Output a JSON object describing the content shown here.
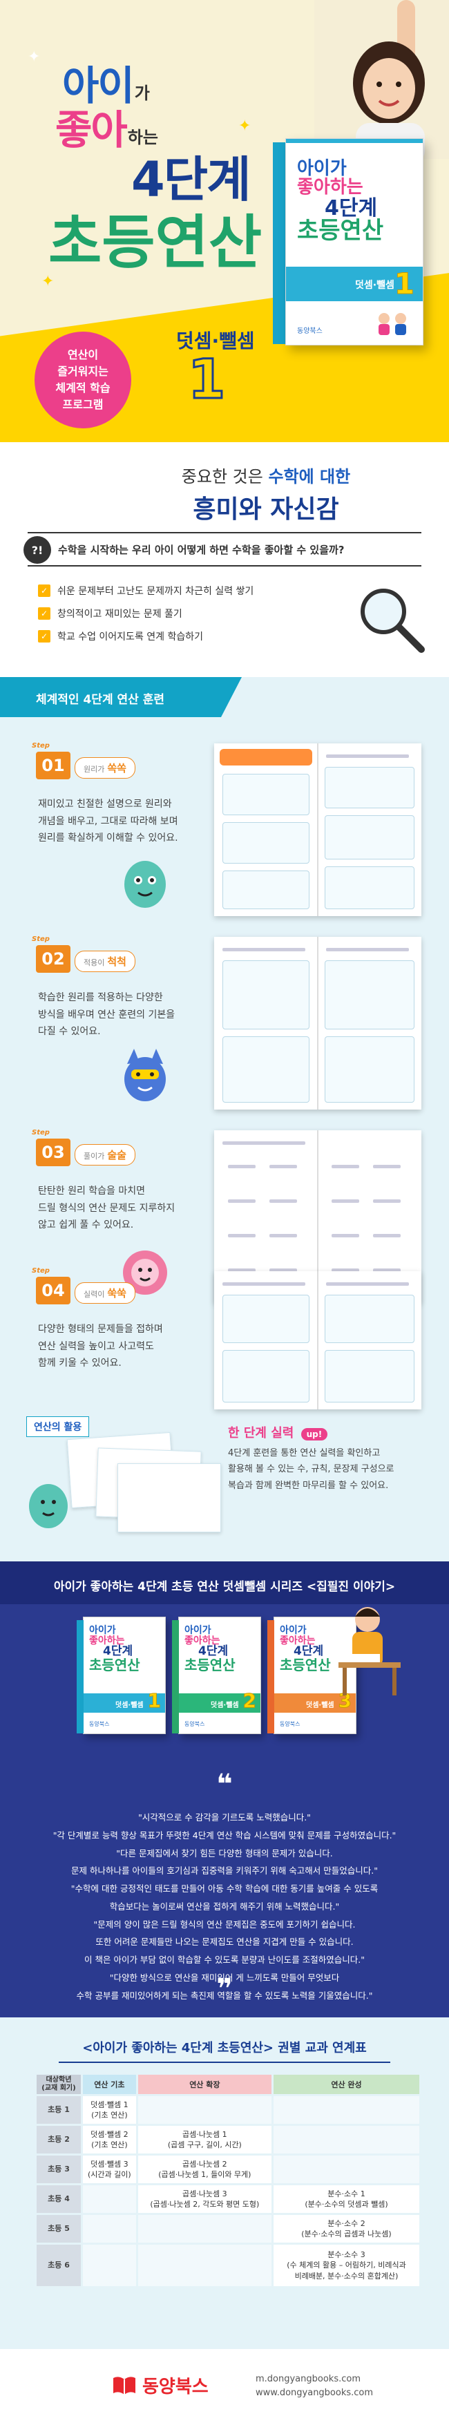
{
  "hero": {
    "title_l1_big1": "아이",
    "title_l1_small": "가",
    "title_l2_big1": "좋아",
    "title_l2_small": "하는",
    "title_l3": "4단계",
    "title_l4": "초등연산",
    "subtitle": "덧셈·뺄셈",
    "volume": "1",
    "badge": "연산이\n즐거워지는\n체계적 학습\n프로그램"
  },
  "book_cover": {
    "line1": "아이가",
    "line2": "좋아하는",
    "line3": "4단계",
    "line4": "초등연산",
    "bar_label": "덧셈·뺄셈",
    "number": "1",
    "publisher": "동양북스"
  },
  "intro": {
    "line1_pre": "중요한 것은 ",
    "line1_hl": "수학에 대한",
    "line2": "흥미와 자신감",
    "question_icon": "?!",
    "question": "수학을 시작하는 우리 아이 어떻게 하면 수학을 좋아할 수 있을까?",
    "points": [
      "쉬운 문제부터 고난도 문제까지 차근히 실력 쌓기",
      "창의적이고 재미있는 문제 풀기",
      "학교 수업 이어지도록 연계 학습하기"
    ]
  },
  "steps_section": {
    "header": "체계적인 4단계 연산 훈련",
    "step_word": "Step",
    "steps": [
      {
        "num": "01",
        "label_small": "원리가",
        "label": "쏙쏙",
        "desc": "재미있고 친절한 설명으로 원리와\n개념을 배우고, 그대로 따라해 보며\n원리를 확실하게 이해할 수 있어요."
      },
      {
        "num": "02",
        "label_small": "적용이",
        "label": "척척",
        "desc": "학습한 원리를 적용하는 다양한\n방식을 배우며 연산 훈련의 기본을\n다질 수 있어요."
      },
      {
        "num": "03",
        "label_small": "풀이가",
        "label": "술술",
        "desc": "탄탄한 원리 학습을 마치면\n드릴 형식의 연산 문제도 지루하지\n않고 쉽게 풀 수 있어요."
      },
      {
        "num": "04",
        "label_small": "실력이",
        "label": "쑥쑥",
        "desc": "다양한 형태의 문제들을 접하며\n연산 실력을 높이고 사고력도\n함께 키울 수 있어요."
      }
    ],
    "practice_header": "연산의 활용",
    "practice_title": "한 단계 실력",
    "practice_badge": "up!",
    "practice_desc": "4단계 훈련을 통한 연산 실력을 확인하고\n활용해 볼 수 있는 수, 규칙, 문장제 구성으로\n복습과 함께 완벽한 마무리를 할 수 있어요."
  },
  "series": {
    "header": "아이가 좋아하는 4단계 초등 연산 덧셈뺄셈 시리즈 <집필진 이야기>",
    "books": [
      {
        "line1": "아이가",
        "line2": "좋아하는",
        "line3": "4단계",
        "line4": "초등연산",
        "bar": "덧셈·뺄셈",
        "num": "1",
        "pub": "동양북스"
      },
      {
        "line1": "아이가",
        "line2": "좋아하는",
        "line3": "4단계",
        "line4": "초등연산",
        "bar": "덧셈·뺄셈",
        "num": "2",
        "pub": "동양북스"
      },
      {
        "line1": "아이가",
        "line2": "좋아하는",
        "line3": "4단계",
        "line4": "초등연산",
        "bar": "덧셈·뺄셈",
        "num": "3",
        "pub": "동양북스"
      }
    ],
    "quote_open": "❝",
    "quote_close": "❞",
    "quote_lines": [
      "\"시각적으로 수 감각을 기르도록 노력했습니다.\"",
      "\"각 단계별로 능력 향상 목표가 뚜렷한 4단계 연산 학습 시스템에 맞춰 문제를 구성하였습니다.\"",
      "\"다른 문제집에서 찾기 힘든 다양한 형태의 문제가 있습니다.",
      "문제 하나하나를 아이들의 호기심과 집중력을 키워주기 위해 숙고해서 만들었습니다.\"",
      "\"수학에 대한 긍정적인 태도를 만들어 아동 수학 학습에 대한 동기를 높여줄 수 있도록",
      "학습보다는 놀이로써 연산을 접하게 해주기 위해 노력했습니다.\"",
      "\"문제의 양이 많은 드릴 형식의 연산 문제집은 중도에 포기하기 쉽습니다.",
      "또한 어려운 문제들만 나오는 문제집도 연산을 지겹게 만들 수 있습니다.",
      "이 책은 아이가 부담 없이 학습할 수 있도록 분량과 난이도를 조절하였습니다.\"",
      "\"다양한 방식으로 연산을 재미있어 게 느끼도록 만들어 무엇보다",
      "수학 공부를 재미있어하게 되는 촉진제 역할을 할 수 있도록 노력을 기울였습니다.\""
    ]
  },
  "curriculum": {
    "title": "<아이가 좋아하는 4단계 초등연산> 권별 교과 연계표",
    "headers": [
      "대상학년\n(교재 회기)",
      "연산 기초",
      "연산 확장",
      "연산 완성"
    ],
    "rows": [
      {
        "grade": "초등 1",
        "a": "덧셈·뺄셈 1\n(기초 연산)",
        "b": "",
        "c": ""
      },
      {
        "grade": "초등 2",
        "a": "덧셈·뺄셈 2\n(기초 연산)",
        "b": "곱셈·나눗셈 1\n(곱셈 구구, 길이, 시간)",
        "c": ""
      },
      {
        "grade": "초등 3",
        "a": "덧셈·뺄셈 3\n(시간과 길이)",
        "b": "곱셈·나눗셈 2\n(곱셈·나눗셈 1, 들이와 무게)",
        "c": ""
      },
      {
        "grade": "초등 4",
        "a": "",
        "b": "곱셈·나눗셈 3\n(곱셈·나눗셈 2, 각도와 평면 도형)",
        "c": "분수·소수 1\n(분수·소수의 덧셈과 뺄셈)"
      },
      {
        "grade": "초등 5",
        "a": "",
        "b": "",
        "c": "분수·소수 2\n(분수·소수의 곱셈과 나눗셈)"
      },
      {
        "grade": "초등 6",
        "a": "",
        "b": "",
        "c": "분수·소수 3\n(수 체계의 활용 – 어림하기, 비례식과\n비례배분, 분수·소수의 혼합계산)"
      }
    ]
  },
  "footer": {
    "logo": "동양북스",
    "site": "m.dongyangbooks.com\nwww.dongyangbooks.com"
  },
  "colors": {
    "yellow": "#ffd400",
    "pink": "#ec3f8a",
    "navy": "#183d91",
    "teal": "#12a3c6",
    "orange": "#f08a1e"
  }
}
